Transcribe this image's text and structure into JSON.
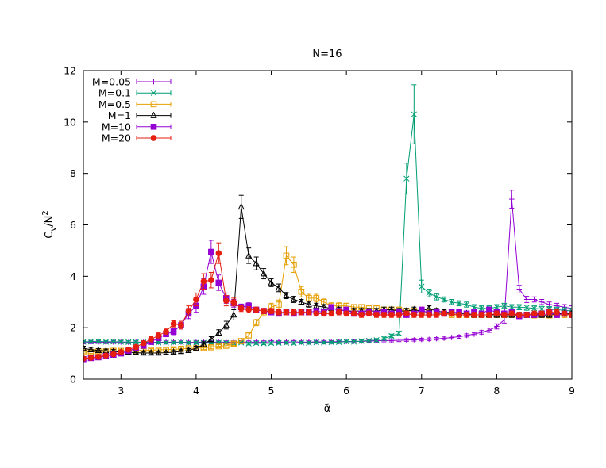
{
  "chart_data": {
    "type": "line",
    "title": "N=16",
    "xlabel": "α̃",
    "ylabel_main": "C",
    "ylabel_sub": "v",
    "ylabel_rest": "/N",
    "ylabel_sup": "2",
    "xlim": [
      2.5,
      9
    ],
    "ylim": [
      0,
      12
    ],
    "xticks": [
      3,
      4,
      5,
      6,
      7,
      8,
      9
    ],
    "yticks": [
      0,
      2,
      4,
      6,
      8,
      10,
      12
    ],
    "grid": false,
    "legend_position": "top-left",
    "series": [
      {
        "name": "M=0.05",
        "color": "#9400D3",
        "marker": "plus",
        "x": [
          2.5,
          2.6,
          2.7,
          2.8,
          2.9,
          3.0,
          3.1,
          3.2,
          3.3,
          3.4,
          3.5,
          3.6,
          3.7,
          3.8,
          3.9,
          4.0,
          4.1,
          4.2,
          4.3,
          4.4,
          4.5,
          4.6,
          4.7,
          4.8,
          4.9,
          5.0,
          5.1,
          5.2,
          5.3,
          5.4,
          5.5,
          5.6,
          5.7,
          5.8,
          5.9,
          6.0,
          6.1,
          6.2,
          6.3,
          6.4,
          6.5,
          6.6,
          6.7,
          6.8,
          6.9,
          7.0,
          7.1,
          7.2,
          7.3,
          7.4,
          7.5,
          7.6,
          7.7,
          7.8,
          7.9,
          8.0,
          8.1,
          8.2,
          8.3,
          8.4,
          8.5,
          8.6,
          8.7,
          8.8,
          8.9,
          9.0
        ],
        "y": [
          1.42,
          1.43,
          1.44,
          1.43,
          1.44,
          1.44,
          1.43,
          1.44,
          1.44,
          1.43,
          1.44,
          1.44,
          1.44,
          1.44,
          1.43,
          1.44,
          1.44,
          1.44,
          1.44,
          1.44,
          1.44,
          1.44,
          1.44,
          1.44,
          1.44,
          1.45,
          1.44,
          1.44,
          1.45,
          1.44,
          1.44,
          1.45,
          1.45,
          1.45,
          1.46,
          1.46,
          1.47,
          1.47,
          1.48,
          1.49,
          1.5,
          1.5,
          1.51,
          1.52,
          1.53,
          1.54,
          1.55,
          1.57,
          1.59,
          1.62,
          1.65,
          1.7,
          1.75,
          1.82,
          1.9,
          2.05,
          2.3,
          7.0,
          3.5,
          3.1,
          3.1,
          3.0,
          2.9,
          2.85,
          2.8,
          2.75
        ],
        "err": [
          0.05,
          0.05,
          0.05,
          0.05,
          0.05,
          0.05,
          0.05,
          0.05,
          0.05,
          0.05,
          0.05,
          0.05,
          0.05,
          0.05,
          0.05,
          0.05,
          0.05,
          0.05,
          0.05,
          0.05,
          0.05,
          0.05,
          0.05,
          0.05,
          0.05,
          0.05,
          0.05,
          0.05,
          0.05,
          0.05,
          0.05,
          0.05,
          0.05,
          0.05,
          0.05,
          0.05,
          0.05,
          0.05,
          0.05,
          0.05,
          0.05,
          0.05,
          0.05,
          0.05,
          0.05,
          0.05,
          0.05,
          0.05,
          0.05,
          0.05,
          0.06,
          0.06,
          0.06,
          0.07,
          0.08,
          0.1,
          0.12,
          0.35,
          0.15,
          0.12,
          0.1,
          0.1,
          0.1,
          0.1,
          0.1,
          0.1
        ]
      },
      {
        "name": "M=0.1",
        "color": "#009E73",
        "marker": "cross",
        "x": [
          2.5,
          2.6,
          2.7,
          2.8,
          2.9,
          3.0,
          3.1,
          3.2,
          3.3,
          3.4,
          3.5,
          3.6,
          3.7,
          3.8,
          3.9,
          4.0,
          4.1,
          4.2,
          4.3,
          4.4,
          4.5,
          4.6,
          4.7,
          4.8,
          4.9,
          5.0,
          5.1,
          5.2,
          5.3,
          5.4,
          5.5,
          5.6,
          5.7,
          5.8,
          5.9,
          6.0,
          6.1,
          6.2,
          6.3,
          6.4,
          6.5,
          6.6,
          6.7,
          6.8,
          6.9,
          7.0,
          7.1,
          7.2,
          7.3,
          7.4,
          7.5,
          7.6,
          7.7,
          7.8,
          7.9,
          8.0,
          8.1,
          8.2,
          8.3,
          8.4,
          8.5,
          8.6,
          8.7,
          8.8,
          8.9,
          9.0
        ],
        "y": [
          1.45,
          1.46,
          1.47,
          1.45,
          1.46,
          1.45,
          1.44,
          1.44,
          1.43,
          1.42,
          1.42,
          1.42,
          1.42,
          1.43,
          1.41,
          1.42,
          1.41,
          1.42,
          1.42,
          1.41,
          1.4,
          1.42,
          1.38,
          1.4,
          1.39,
          1.4,
          1.41,
          1.41,
          1.4,
          1.42,
          1.41,
          1.43,
          1.42,
          1.43,
          1.44,
          1.46,
          1.45,
          1.48,
          1.5,
          1.52,
          1.58,
          1.68,
          1.78,
          7.8,
          10.3,
          3.6,
          3.35,
          3.2,
          3.1,
          3.0,
          2.95,
          2.9,
          2.8,
          2.75,
          2.75,
          2.8,
          2.85,
          2.8,
          2.8,
          2.78,
          2.75,
          2.73,
          2.72,
          2.7,
          2.68,
          2.65
        ],
        "err": [
          0.05,
          0.05,
          0.05,
          0.05,
          0.05,
          0.05,
          0.05,
          0.05,
          0.05,
          0.05,
          0.05,
          0.05,
          0.05,
          0.05,
          0.05,
          0.05,
          0.05,
          0.05,
          0.05,
          0.05,
          0.05,
          0.05,
          0.05,
          0.05,
          0.05,
          0.05,
          0.05,
          0.05,
          0.05,
          0.05,
          0.05,
          0.05,
          0.05,
          0.05,
          0.05,
          0.05,
          0.05,
          0.05,
          0.05,
          0.06,
          0.06,
          0.07,
          0.08,
          0.6,
          1.15,
          0.25,
          0.15,
          0.12,
          0.1,
          0.1,
          0.1,
          0.1,
          0.1,
          0.1,
          0.1,
          0.1,
          0.1,
          0.1,
          0.1,
          0.1,
          0.1,
          0.1,
          0.1,
          0.1,
          0.1,
          0.1
        ]
      },
      {
        "name": "M=0.5",
        "color": "#E69F00",
        "marker": "square-open",
        "x": [
          2.5,
          2.6,
          2.7,
          2.8,
          2.9,
          3.0,
          3.1,
          3.2,
          3.3,
          3.4,
          3.5,
          3.6,
          3.7,
          3.8,
          3.9,
          4.0,
          4.1,
          4.2,
          4.3,
          4.4,
          4.5,
          4.6,
          4.7,
          4.8,
          4.9,
          5.0,
          5.1,
          5.2,
          5.3,
          5.4,
          5.5,
          5.6,
          5.7,
          5.8,
          5.9,
          6.0,
          6.1,
          6.2,
          6.3,
          6.4,
          6.5,
          6.6,
          6.7,
          6.8,
          6.9,
          7.0,
          7.1,
          7.2,
          7.3,
          7.4,
          7.5,
          7.6,
          7.7,
          7.8,
          7.9,
          8.0,
          8.1,
          8.2,
          8.3,
          8.4,
          8.5,
          8.6,
          8.7,
          8.8,
          8.9,
          9.0
        ],
        "y": [
          1.05,
          1.06,
          1.08,
          1.08,
          1.1,
          1.1,
          1.1,
          1.12,
          1.12,
          1.13,
          1.14,
          1.15,
          1.16,
          1.18,
          1.2,
          1.2,
          1.22,
          1.24,
          1.28,
          1.3,
          1.38,
          1.48,
          1.7,
          2.2,
          2.6,
          2.8,
          2.9,
          4.8,
          4.45,
          3.4,
          3.15,
          3.15,
          3.0,
          2.85,
          2.85,
          2.85,
          2.8,
          2.8,
          2.75,
          2.75,
          2.7,
          2.7,
          2.7,
          2.65,
          2.65,
          2.6,
          2.6,
          2.55,
          2.55,
          2.5,
          2.5,
          2.5,
          2.5,
          2.5,
          2.5,
          2.5,
          2.5,
          2.5,
          2.48,
          2.5,
          2.48,
          2.5,
          2.48,
          2.5,
          2.5,
          2.5
        ],
        "err": [
          0.06,
          0.06,
          0.06,
          0.06,
          0.06,
          0.06,
          0.06,
          0.06,
          0.06,
          0.06,
          0.06,
          0.06,
          0.06,
          0.06,
          0.06,
          0.06,
          0.06,
          0.06,
          0.06,
          0.06,
          0.07,
          0.08,
          0.1,
          0.12,
          0.15,
          0.15,
          0.18,
          0.35,
          0.3,
          0.2,
          0.15,
          0.15,
          0.12,
          0.12,
          0.12,
          0.1,
          0.1,
          0.1,
          0.1,
          0.1,
          0.1,
          0.1,
          0.1,
          0.1,
          0.1,
          0.1,
          0.1,
          0.1,
          0.1,
          0.1,
          0.1,
          0.1,
          0.1,
          0.1,
          0.1,
          0.1,
          0.1,
          0.1,
          0.1,
          0.1,
          0.1,
          0.1,
          0.1,
          0.1,
          0.1,
          0.1
        ]
      },
      {
        "name": "M=1",
        "color": "#000000",
        "marker": "triangle-open",
        "x": [
          2.5,
          2.6,
          2.7,
          2.8,
          2.9,
          3.0,
          3.1,
          3.2,
          3.3,
          3.4,
          3.5,
          3.6,
          3.7,
          3.8,
          3.9,
          4.0,
          4.1,
          4.2,
          4.3,
          4.4,
          4.5,
          4.6,
          4.7,
          4.8,
          4.9,
          5.0,
          5.1,
          5.2,
          5.3,
          5.4,
          5.5,
          5.6,
          5.7,
          5.8,
          5.9,
          6.0,
          6.1,
          6.2,
          6.3,
          6.4,
          6.5,
          6.6,
          6.7,
          6.8,
          6.9,
          7.0,
          7.1,
          7.2,
          7.3,
          7.4,
          7.5,
          7.6,
          7.7,
          7.8,
          7.9,
          8.0,
          8.1,
          8.2,
          8.3,
          8.4,
          8.5,
          8.6,
          8.7,
          8.8,
          8.9,
          9.0
        ],
        "y": [
          1.2,
          1.15,
          1.12,
          1.1,
          1.08,
          1.05,
          1.05,
          1.03,
          1.02,
          1.02,
          1.02,
          1.03,
          1.05,
          1.08,
          1.12,
          1.2,
          1.35,
          1.55,
          1.8,
          2.1,
          2.5,
          6.7,
          4.8,
          4.5,
          4.1,
          3.75,
          3.55,
          3.25,
          3.1,
          3.0,
          2.9,
          2.85,
          2.8,
          2.75,
          2.7,
          2.65,
          2.65,
          2.65,
          2.65,
          2.65,
          2.7,
          2.7,
          2.65,
          2.65,
          2.7,
          2.65,
          2.75,
          2.65,
          2.6,
          2.6,
          2.55,
          2.55,
          2.5,
          2.5,
          2.5,
          2.5,
          2.5,
          2.5,
          2.5,
          2.5,
          2.5,
          2.5,
          2.5,
          2.55,
          2.55,
          2.55
        ],
        "err": [
          0.08,
          0.08,
          0.07,
          0.07,
          0.07,
          0.07,
          0.07,
          0.06,
          0.06,
          0.06,
          0.06,
          0.06,
          0.06,
          0.07,
          0.07,
          0.08,
          0.1,
          0.1,
          0.12,
          0.15,
          0.2,
          0.45,
          0.3,
          0.25,
          0.2,
          0.15,
          0.15,
          0.12,
          0.12,
          0.1,
          0.1,
          0.1,
          0.1,
          0.1,
          0.1,
          0.1,
          0.1,
          0.1,
          0.1,
          0.1,
          0.1,
          0.1,
          0.1,
          0.1,
          0.1,
          0.1,
          0.1,
          0.1,
          0.1,
          0.1,
          0.1,
          0.1,
          0.1,
          0.1,
          0.1,
          0.1,
          0.1,
          0.1,
          0.1,
          0.1,
          0.1,
          0.1,
          0.1,
          0.1,
          0.1,
          0.1
        ]
      },
      {
        "name": "M=10",
        "color": "#9400D3",
        "marker": "square-filled",
        "x": [
          2.5,
          2.6,
          2.7,
          2.8,
          2.9,
          3.0,
          3.1,
          3.2,
          3.3,
          3.4,
          3.5,
          3.6,
          3.7,
          3.8,
          3.9,
          4.0,
          4.1,
          4.2,
          4.3,
          4.4,
          4.5,
          4.6,
          4.7,
          4.8,
          4.9,
          5.0,
          5.1,
          5.2,
          5.3,
          5.4,
          5.5,
          5.6,
          5.7,
          5.8,
          5.9,
          6.0,
          6.1,
          6.2,
          6.3,
          6.4,
          6.5,
          6.6,
          6.7,
          6.8,
          6.9,
          7.0,
          7.1,
          7.2,
          7.3,
          7.4,
          7.5,
          7.6,
          7.7,
          7.8,
          7.9,
          8.0,
          8.1,
          8.2,
          8.3,
          8.4,
          8.5,
          8.6,
          8.7,
          8.8,
          8.9,
          9.0
        ],
        "y": [
          0.78,
          0.82,
          0.85,
          0.9,
          0.95,
          1.0,
          1.1,
          1.2,
          1.3,
          1.45,
          1.6,
          1.75,
          1.85,
          2.1,
          2.55,
          2.85,
          3.6,
          4.95,
          3.75,
          3.15,
          2.95,
          2.8,
          2.85,
          2.7,
          2.65,
          2.6,
          2.55,
          2.6,
          2.55,
          2.6,
          2.6,
          2.65,
          2.6,
          2.8,
          2.65,
          2.7,
          2.55,
          2.55,
          2.6,
          2.55,
          2.6,
          2.55,
          2.6,
          2.5,
          2.55,
          2.7,
          2.55,
          2.6,
          2.55,
          2.6,
          2.6,
          2.55,
          2.6,
          2.55,
          2.7,
          2.6,
          2.55,
          2.6,
          2.45,
          2.5,
          2.5,
          2.55,
          2.6,
          2.5,
          2.55,
          2.5
        ],
        "err": [
          0.06,
          0.06,
          0.06,
          0.06,
          0.06,
          0.07,
          0.07,
          0.08,
          0.08,
          0.1,
          0.1,
          0.1,
          0.12,
          0.15,
          0.2,
          0.25,
          0.3,
          0.45,
          0.3,
          0.2,
          0.15,
          0.12,
          0.12,
          0.1,
          0.1,
          0.1,
          0.1,
          0.1,
          0.1,
          0.1,
          0.1,
          0.1,
          0.1,
          0.1,
          0.1,
          0.1,
          0.1,
          0.1,
          0.1,
          0.1,
          0.1,
          0.1,
          0.1,
          0.1,
          0.1,
          0.1,
          0.1,
          0.1,
          0.1,
          0.1,
          0.1,
          0.1,
          0.1,
          0.1,
          0.1,
          0.1,
          0.1,
          0.1,
          0.1,
          0.1,
          0.1,
          0.1,
          0.1,
          0.1,
          0.1,
          0.1
        ]
      },
      {
        "name": "M=20",
        "color": "#E51E10",
        "marker": "circle-filled",
        "x": [
          2.5,
          2.6,
          2.7,
          2.8,
          2.9,
          3.0,
          3.1,
          3.2,
          3.3,
          3.4,
          3.5,
          3.6,
          3.7,
          3.8,
          3.9,
          4.0,
          4.1,
          4.2,
          4.3,
          4.4,
          4.5,
          4.6,
          4.7,
          4.8,
          4.9,
          5.0,
          5.1,
          5.2,
          5.3,
          5.4,
          5.5,
          5.6,
          5.7,
          5.8,
          5.9,
          6.0,
          6.1,
          6.2,
          6.3,
          6.4,
          6.5,
          6.6,
          6.7,
          6.8,
          6.9,
          7.0,
          7.1,
          7.2,
          7.3,
          7.4,
          7.5,
          7.6,
          7.7,
          7.8,
          7.9,
          8.0,
          8.1,
          8.2,
          8.3,
          8.4,
          8.5,
          8.6,
          8.7,
          8.8,
          8.9,
          9.0
        ],
        "y": [
          0.8,
          0.83,
          0.87,
          0.92,
          0.97,
          1.05,
          1.15,
          1.25,
          1.4,
          1.55,
          1.7,
          1.85,
          2.15,
          2.1,
          2.65,
          3.1,
          3.8,
          3.85,
          4.9,
          3.05,
          3.0,
          2.75,
          2.7,
          2.7,
          2.65,
          2.65,
          2.6,
          2.6,
          2.6,
          2.6,
          2.6,
          2.55,
          2.55,
          2.55,
          2.6,
          2.55,
          2.55,
          2.5,
          2.55,
          2.5,
          2.5,
          2.5,
          2.5,
          2.55,
          2.5,
          2.5,
          2.5,
          2.5,
          2.55,
          2.55,
          2.5,
          2.5,
          2.5,
          2.5,
          2.5,
          2.55,
          2.5,
          2.55,
          2.5,
          2.5,
          2.55,
          2.55,
          2.6,
          2.6,
          2.55,
          2.5
        ],
        "err": [
          0.06,
          0.06,
          0.06,
          0.06,
          0.06,
          0.07,
          0.07,
          0.08,
          0.08,
          0.1,
          0.1,
          0.1,
          0.12,
          0.15,
          0.2,
          0.25,
          0.3,
          0.3,
          0.4,
          0.2,
          0.15,
          0.12,
          0.12,
          0.1,
          0.1,
          0.1,
          0.1,
          0.1,
          0.1,
          0.1,
          0.1,
          0.1,
          0.1,
          0.1,
          0.1,
          0.1,
          0.1,
          0.1,
          0.1,
          0.1,
          0.1,
          0.1,
          0.1,
          0.1,
          0.1,
          0.1,
          0.1,
          0.1,
          0.1,
          0.1,
          0.1,
          0.1,
          0.1,
          0.1,
          0.1,
          0.1,
          0.1,
          0.1,
          0.1,
          0.1,
          0.1,
          0.1,
          0.1,
          0.1,
          0.1,
          0.1
        ]
      }
    ]
  }
}
